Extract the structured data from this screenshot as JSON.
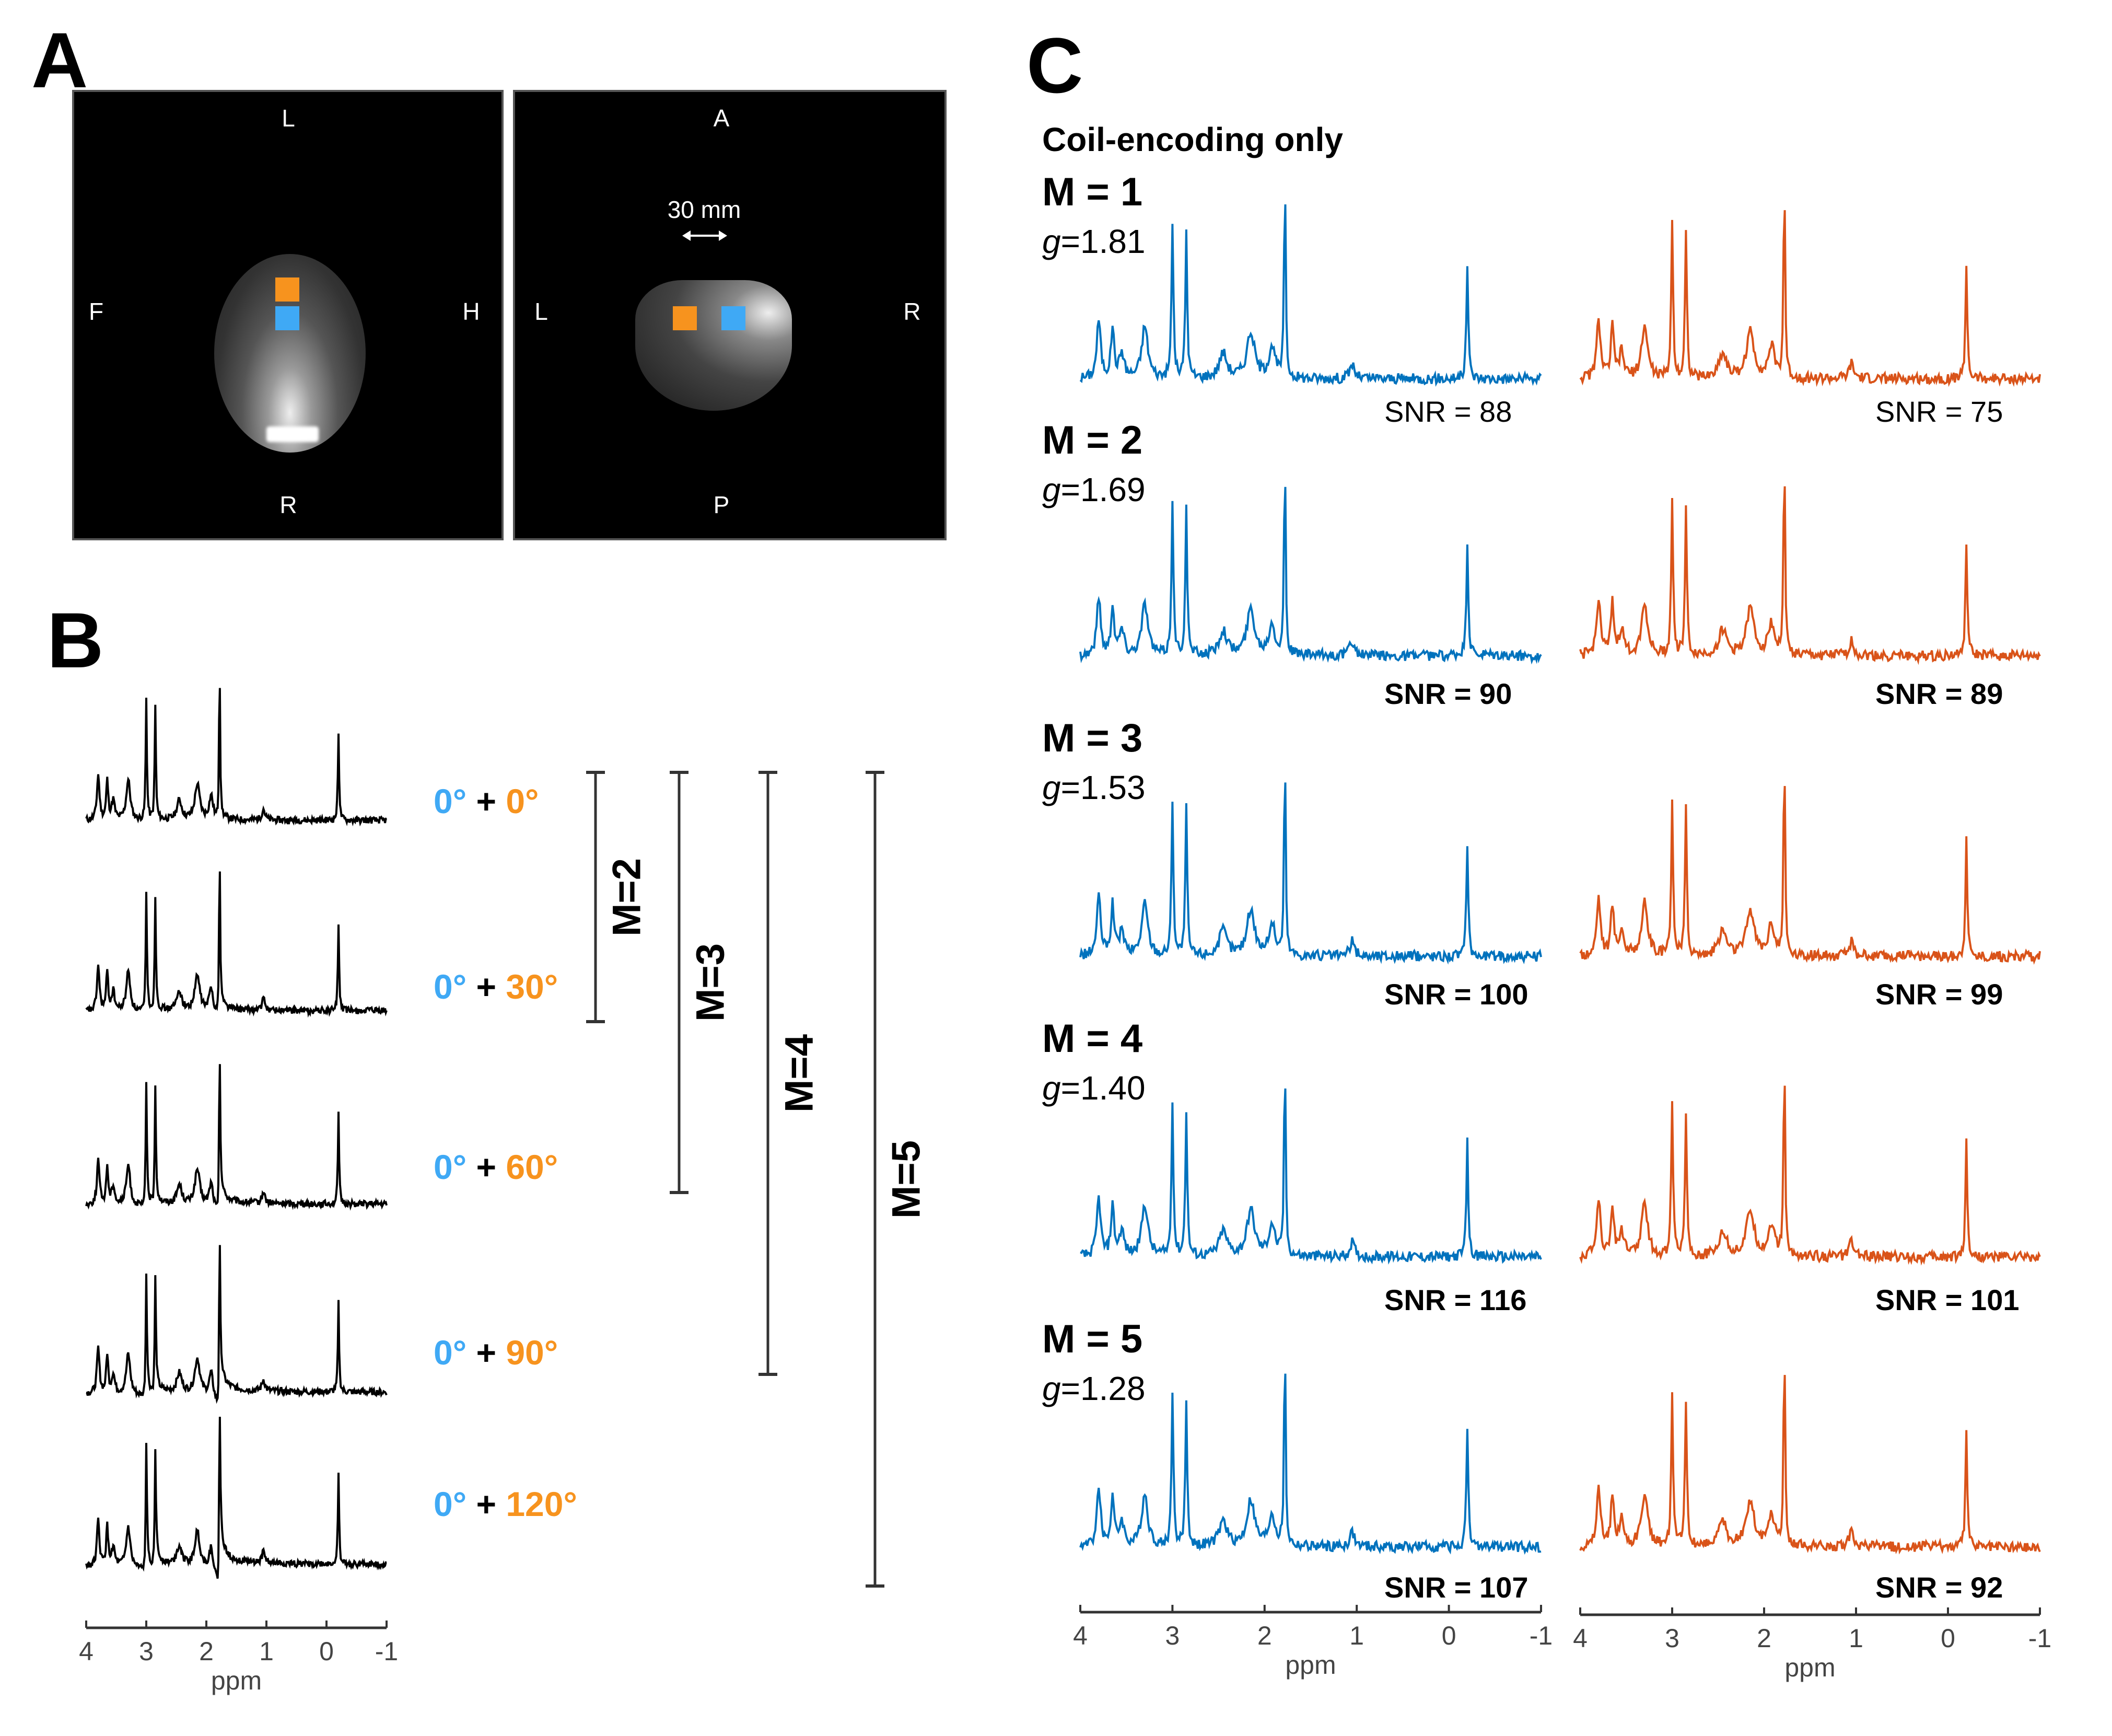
{
  "panels": {
    "A": {
      "label": "A",
      "images": [
        {
          "orientation": {
            "top": "L",
            "bottom": "R",
            "left": "F",
            "right": "H"
          }
        },
        {
          "orientation": {
            "top": "A",
            "bottom": "P",
            "left": "L",
            "right": "R"
          },
          "scale_label": "30 mm"
        }
      ],
      "roi_colors": {
        "orange": "#F7931E",
        "blue": "#3FA9F5"
      }
    },
    "B": {
      "label": "B",
      "line_color": "#000000",
      "rows": [
        {
          "blue_angle": "0°",
          "plus": "+",
          "orange_angle": "0°"
        },
        {
          "blue_angle": "0°",
          "plus": "+",
          "orange_angle": "30°"
        },
        {
          "blue_angle": "0°",
          "plus": "+",
          "orange_angle": "60°"
        },
        {
          "blue_angle": "0°",
          "plus": "+",
          "orange_angle": "90°"
        },
        {
          "blue_angle": "0°",
          "plus": "+",
          "orange_angle": "120°"
        }
      ],
      "brackets": [
        {
          "label": "M=2",
          "from_row": 1,
          "to_row": 2
        },
        {
          "label": "M=3",
          "from_row": 1,
          "to_row": 3
        },
        {
          "label": "M=4",
          "from_row": 1,
          "to_row": 4
        },
        {
          "label": "M=5",
          "from_row": 1,
          "to_row": 5
        }
      ],
      "axis": {
        "ticks": [
          "4",
          "3",
          "2",
          "1",
          "0",
          "-1"
        ],
        "xlabel": "ppm"
      },
      "angle_colors": {
        "blue": "#3FA9F5",
        "orange": "#F7931E",
        "plus": "#000000"
      }
    },
    "C": {
      "label": "C",
      "subtitle": "Coil-encoding only",
      "colors": {
        "left": "#0072BD",
        "right": "#D95319"
      },
      "rows": [
        {
          "m_label": "M = 1",
          "g_prefix": "g",
          "g_value": "=1.81",
          "snr_left": "SNR = 88",
          "snr_right": "SNR = 75",
          "bold": false
        },
        {
          "m_label": "M = 2",
          "g_prefix": "g",
          "g_value": "=1.69",
          "snr_left": "SNR = 90",
          "snr_right": "SNR = 89",
          "bold": true
        },
        {
          "m_label": "M = 3",
          "g_prefix": "g",
          "g_value": "=1.53",
          "snr_left": "SNR = 100",
          "snr_right": "SNR = 99",
          "bold": true
        },
        {
          "m_label": "M = 4",
          "g_prefix": "g",
          "g_value": "=1.40",
          "snr_left": "SNR = 116",
          "snr_right": "SNR = 101",
          "bold": true
        },
        {
          "m_label": "M = 5",
          "g_prefix": "g",
          "g_value": "=1.28",
          "snr_left": "SNR = 107",
          "snr_right": "SNR = 92",
          "bold": true
        }
      ],
      "axis": {
        "ticks": [
          "4",
          "3",
          "2",
          "1",
          "0",
          "-1"
        ],
        "xlabel": "ppm"
      }
    }
  },
  "chart_data": [
    {
      "type": "line",
      "title": "B: combined spectra for angle pairs",
      "xlabel": "ppm",
      "xlim": [
        4,
        -1
      ],
      "x_reversed": true,
      "series": [
        {
          "name": "0° + 0°"
        },
        {
          "name": "0° + 30°"
        },
        {
          "name": "0° + 60°"
        },
        {
          "name": "0° + 90°"
        },
        {
          "name": "0° + 120°"
        }
      ],
      "peaks_ppm": [
        3.8,
        3.65,
        3.3,
        3.0,
        2.8,
        2.15,
        1.8,
        -0.2
      ]
    },
    {
      "type": "line",
      "title": "C: Coil-encoding only",
      "xlabel": "ppm",
      "xlim": [
        4,
        -1
      ],
      "x_reversed": true,
      "series": [
        {
          "name": "M=1 blue ROI",
          "snr": 88,
          "g": 1.81
        },
        {
          "name": "M=1 orange ROI",
          "snr": 75
        },
        {
          "name": "M=2 blue ROI",
          "snr": 90,
          "g": 1.69
        },
        {
          "name": "M=2 orange ROI",
          "snr": 89
        },
        {
          "name": "M=3 blue ROI",
          "snr": 100,
          "g": 1.53
        },
        {
          "name": "M=3 orange ROI",
          "snr": 99
        },
        {
          "name": "M=4 blue ROI",
          "snr": 116,
          "g": 1.4
        },
        {
          "name": "M=4 orange ROI",
          "snr": 101
        },
        {
          "name": "M=5 blue ROI",
          "snr": 107,
          "g": 1.28
        },
        {
          "name": "M=5 orange ROI",
          "snr": 92
        }
      ],
      "peaks_ppm": [
        3.8,
        3.65,
        3.3,
        3.0,
        2.8,
        2.15,
        1.8,
        -0.2
      ]
    }
  ]
}
